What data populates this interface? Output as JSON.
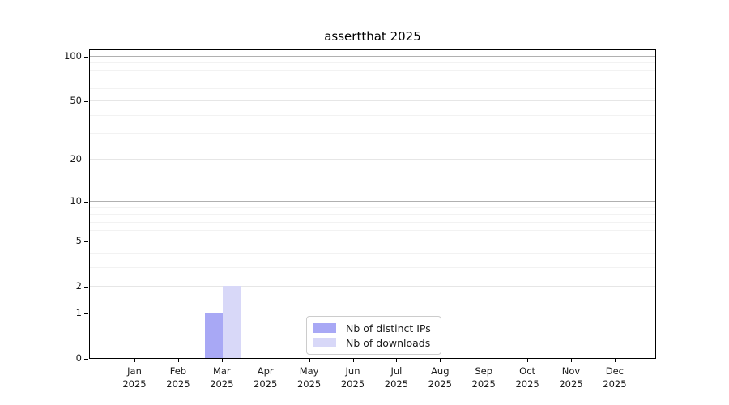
{
  "chart_data": {
    "type": "bar",
    "title": "assertthat 2025",
    "categories": [
      {
        "month": "Jan",
        "year": "2025"
      },
      {
        "month": "Feb",
        "year": "2025"
      },
      {
        "month": "Mar",
        "year": "2025"
      },
      {
        "month": "Apr",
        "year": "2025"
      },
      {
        "month": "May",
        "year": "2025"
      },
      {
        "month": "Jun",
        "year": "2025"
      },
      {
        "month": "Jul",
        "year": "2025"
      },
      {
        "month": "Aug",
        "year": "2025"
      },
      {
        "month": "Sep",
        "year": "2025"
      },
      {
        "month": "Oct",
        "year": "2025"
      },
      {
        "month": "Nov",
        "year": "2025"
      },
      {
        "month": "Dec",
        "year": "2025"
      }
    ],
    "series": [
      {
        "name": "Nb of distinct IPs",
        "color": "#a8a8f5",
        "values": [
          0,
          0,
          1,
          0,
          0,
          0,
          0,
          0,
          0,
          0,
          0,
          0
        ]
      },
      {
        "name": "Nb of downloads",
        "color": "#d8d8f8",
        "values": [
          0,
          0,
          2,
          0,
          0,
          0,
          0,
          0,
          0,
          0,
          0,
          0
        ]
      }
    ],
    "y_axis": {
      "scale": "log1p",
      "ticks": [
        0,
        1,
        2,
        5,
        10,
        20,
        50,
        100
      ],
      "range": [
        0,
        112
      ]
    },
    "grid": {
      "major_values": [
        1,
        10,
        100
      ],
      "labeled_values": [
        2,
        5,
        20,
        50
      ],
      "minor_values": [
        3,
        4,
        6,
        7,
        8,
        9,
        30,
        40,
        60,
        70,
        80,
        90
      ]
    },
    "legend_position": "lower center"
  },
  "colors": {
    "bar_distinct_ips": "#a8a8f5",
    "bar_downloads": "#d8d8f8",
    "grid_major": "#b0b0b0",
    "grid_labeled": "#e6e6e6",
    "grid_minor": "#f2f2f2",
    "axis": "#000000",
    "tick_text": "#1a1a1a",
    "legend_border": "#cccccc"
  }
}
